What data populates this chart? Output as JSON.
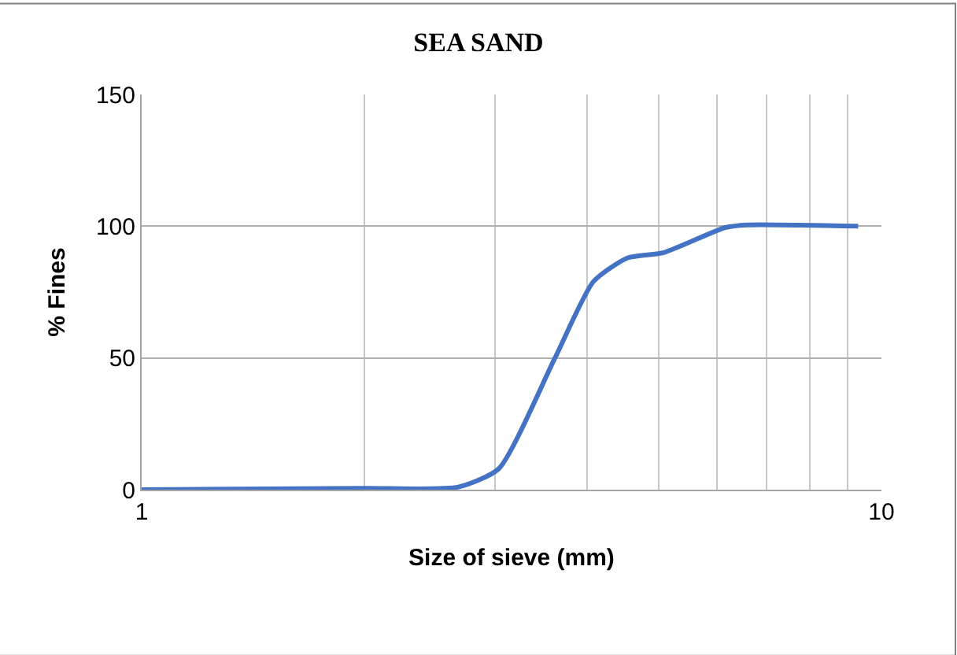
{
  "chart_data": {
    "type": "line",
    "title": "SEA SAND",
    "xlabel": "Size of sieve (mm)",
    "ylabel": "% Fines",
    "x": [
      1,
      2,
      2.68,
      3.04,
      3.62,
      4.08,
      4.54,
      5.08,
      6.15,
      6.59,
      9.3
    ],
    "series": [
      {
        "color": "#4472c4",
        "values": [
          0,
          0.5,
          1,
          8,
          50,
          79,
          88,
          90,
          99.5,
          100.5,
          100
        ]
      }
    ],
    "log": "x",
    "xlim": [
      1,
      10
    ],
    "xticks": [
      1,
      {
        "value": 2,
        "label": null
      },
      {
        "value": 3,
        "label": null
      },
      {
        "value": 4,
        "label": null
      },
      {
        "value": 5,
        "label": null
      },
      {
        "value": 6,
        "label": null
      },
      {
        "value": 7,
        "label": null
      },
      {
        "value": 8,
        "label": null
      },
      {
        "value": 9,
        "label": null
      },
      10
    ],
    "ylim": [
      0,
      150
    ],
    "yticks": [
      0,
      50,
      100,
      150
    ],
    "grid": true,
    "legend": false,
    "marker": "none",
    "line_style": "solid"
  }
}
